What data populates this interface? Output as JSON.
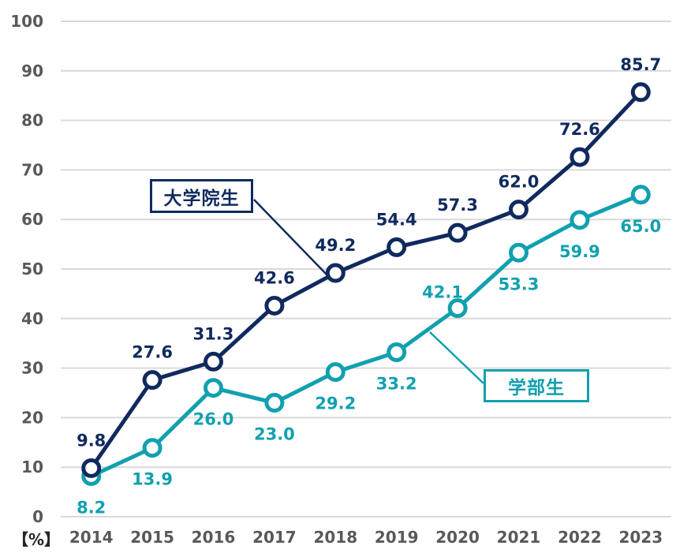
{
  "chart_data": {
    "type": "line",
    "title": "",
    "ylabel": "【%】",
    "xlabel": "",
    "ylim": [
      0,
      100
    ],
    "ytick_step": 10,
    "y_ticks": [
      "0",
      "10",
      "20",
      "30",
      "40",
      "50",
      "60",
      "70",
      "80",
      "90",
      "100"
    ],
    "x_categories": [
      "2014",
      "2015",
      "2016",
      "2017",
      "2018",
      "2019",
      "2020",
      "2021",
      "2022",
      "2023"
    ],
    "grid": true,
    "grid_color": "#d9d9d9",
    "axis_tick_color": "#595959",
    "legend_position": "boxed-annotations-inside-plot",
    "series": [
      {
        "name": "大学院生",
        "color": "#102a5e",
        "values": [
          9.8,
          27.6,
          31.3,
          42.6,
          49.2,
          54.4,
          57.3,
          62.0,
          72.6,
          85.7
        ],
        "labels": [
          "9.8",
          "27.6",
          "31.3",
          "42.6",
          "49.2",
          "54.4",
          "57.3",
          "62.0",
          "72.6",
          "85.7"
        ],
        "label_position": "above"
      },
      {
        "name": "学部生",
        "color": "#11a0af",
        "values": [
          8.2,
          13.9,
          26.0,
          23.0,
          29.2,
          33.2,
          42.1,
          53.3,
          59.9,
          65.0
        ],
        "labels": [
          "8.2",
          "13.9",
          "26.0",
          "23.0",
          "29.2",
          "33.2",
          "42.1",
          "53.3",
          "59.9",
          "65.0"
        ],
        "label_position": "below",
        "label_overrides": {
          "6": "above-left"
        }
      }
    ]
  }
}
